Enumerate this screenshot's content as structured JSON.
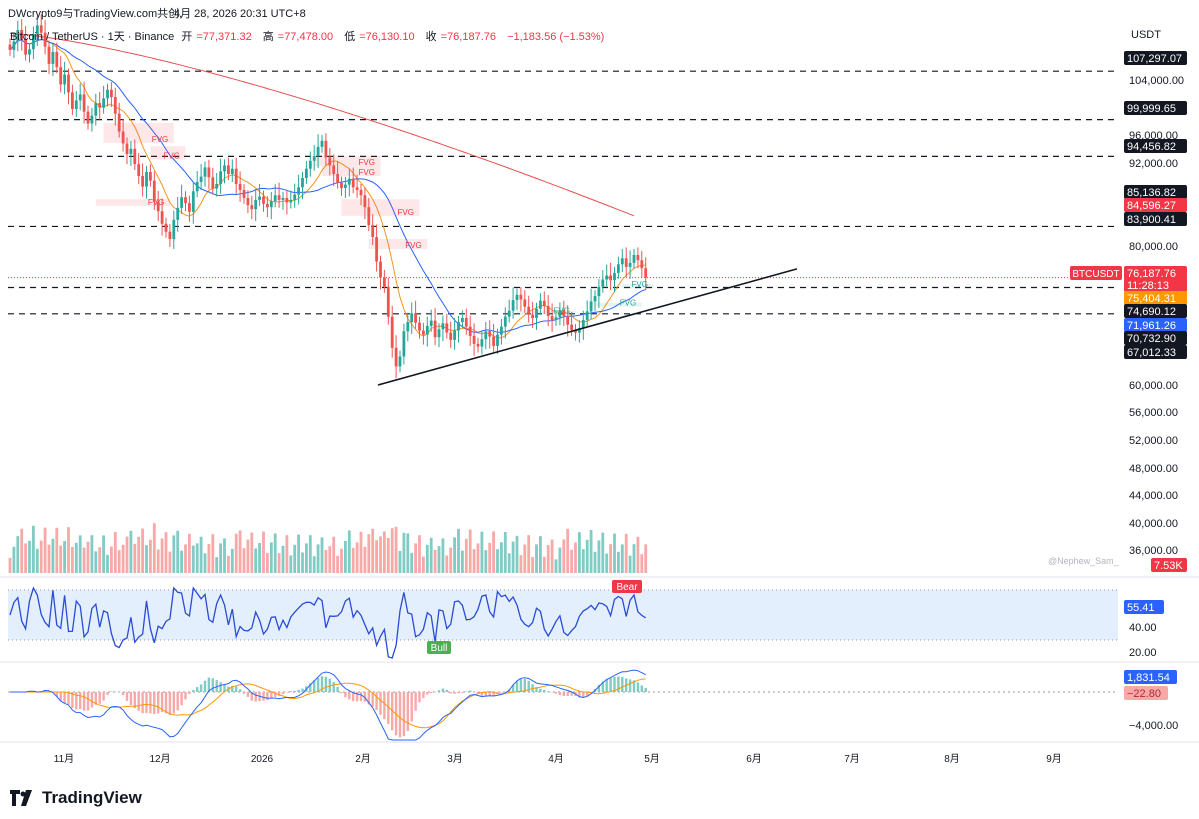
{
  "header": {
    "publisher": "DWcrypto9与TradingView.com共创,",
    "datetime": "4月 28, 2026 20:31 UTC+8"
  },
  "legend": {
    "symbol": "Bitcoin / TetherUS · 1天 · Binance",
    "open_label": "开",
    "open": "=77,371.32",
    "high_label": "高",
    "high": "=77,478.00",
    "low_label": "低",
    "low": "=76,130.10",
    "close_label": "收",
    "close": "=76,187.76",
    "change": "−1,183.56 (−1.53%)"
  },
  "currency": "USDT",
  "watermark": "@Nephew_Sam_",
  "brand": "TradingView",
  "colors": {
    "up": "#26a69a",
    "down": "#ef5350",
    "vol_up": "#80cbc4",
    "vol_down": "#f7a9a7",
    "ma_blue": "#2962ff",
    "ma_orange": "#f7941d",
    "ma_red": "#e55050",
    "rsi": "#2a4bd7",
    "rsi_band": "#e3effc",
    "macd": "#2962ff",
    "signal": "#ff9800"
  },
  "chart_data": [
    {
      "type": "candlestick",
      "title": "Bitcoin / TetherUS · 1天 · Binance",
      "x_ticks": [
        "11月",
        "12月",
        "2026",
        "2月",
        "3月",
        "4月",
        "5月",
        "6月",
        "7月",
        "8月",
        "9月"
      ],
      "y_ticks": [
        "104,000.00",
        "96,000.00",
        "92,000.00",
        "80,000.00",
        "60,000.00",
        "56,000.00",
        "52,000.00",
        "48,000.00",
        "44,000.00",
        "40,000.00",
        "36,000.00"
      ],
      "horizontal_levels": [
        {
          "value": 107297.07,
          "label": "107,297.07",
          "style": "dashed"
        },
        {
          "value": 99999.65,
          "label": "99,999.65",
          "style": "dashed"
        },
        {
          "value": 94456.82,
          "label": "94,456.82",
          "style": "dashed"
        },
        {
          "value": 83900.41,
          "label": "83,900.41",
          "style": "dashed"
        },
        {
          "value": 74690.12,
          "label": "74,690.12",
          "style": "dashed"
        },
        {
          "value": 70732.9,
          "label": "70,732.90",
          "style": "dashed"
        }
      ],
      "price_tags": [
        {
          "label": "85,136.82",
          "bg": "#131722"
        },
        {
          "label": "84,596.27",
          "bg": "#f23645"
        },
        {
          "label": "83,900.41",
          "bg": "#131722"
        },
        {
          "label": "BTCUSDT",
          "bg": "#f23645"
        },
        {
          "label": "76,187.76",
          "bg": "#f23645"
        },
        {
          "label": "11:28:13",
          "bg": "#f23645"
        },
        {
          "label": "75,404.31",
          "bg": "#ff9800"
        },
        {
          "label": "74,690.12",
          "bg": "#131722"
        },
        {
          "label": "71,961.26",
          "bg": "#2962ff"
        },
        {
          "label": "70,732.90",
          "bg": "#131722"
        },
        {
          "label": "67,012.33",
          "bg": "#131722"
        },
        {
          "label": "107,297.07",
          "bg": "#131722"
        },
        {
          "label": "99,999.65",
          "bg": "#131722"
        },
        {
          "label": "94,456.82",
          "bg": "#131722"
        }
      ],
      "fvg_label": "FVG",
      "trendline": {
        "from": {
          "date": "2026-02-06",
          "price": 60000
        },
        "to": {
          "date": "2026-05-25",
          "price": 77500
        }
      },
      "moving_averages": [
        "blue",
        "orange",
        "red"
      ],
      "volume_label": "7.53K",
      "close_series": [
        110500,
        111800,
        113500,
        112200,
        109800,
        110600,
        112900,
        114200,
        113100,
        111000,
        108400,
        110200,
        107900,
        105300,
        106800,
        104100,
        101600,
        102900,
        103800,
        101200,
        99400,
        100600,
        102500,
        101800,
        103200,
        104500,
        103400,
        100900,
        98200,
        96400,
        94800,
        95600,
        93300,
        91500,
        89900,
        92100,
        90800,
        87600,
        86200,
        84300,
        83100,
        82000,
        84900,
        86700,
        88300,
        87400,
        86100,
        89200,
        90600,
        91400,
        92800,
        91300,
        89600,
        90300,
        92200,
        93100,
        91800,
        92600,
        90300,
        89400,
        88200,
        87100,
        86500,
        87900,
        88400,
        87300,
        86800,
        87700,
        88600,
        87900,
        88200,
        87500,
        87900,
        88700,
        89800,
        91200,
        92600,
        93800,
        94500,
        95900,
        96800,
        94300,
        93100,
        91800,
        90500,
        89700,
        90200,
        91100,
        89800,
        89400,
        88600,
        86800,
        84100,
        82300,
        78600,
        76200,
        74800,
        70300,
        65600,
        62800,
        64300,
        68100,
        69500,
        70800,
        69400,
        68200,
        67600,
        68900,
        69700,
        67200,
        68400,
        69300,
        67900,
        66800,
        68200,
        69500,
        70100,
        68800,
        67400,
        66200,
        65800,
        66900,
        68100,
        67300,
        65900,
        67600,
        68800,
        70300,
        71200,
        72800,
        73600,
        72900,
        71800,
        70600,
        70100,
        71500,
        72700,
        71900,
        70400,
        69800,
        70200,
        71300,
        70400,
        69100,
        68300,
        67900,
        68600,
        69800,
        71100,
        72600,
        73400,
        74800,
        75900,
        76500,
        75800,
        76900,
        78200,
        79100,
        77800,
        78400,
        79600,
        78800,
        77600,
        76188
      ],
      "rsi": {
        "value": "55.41",
        "ticks": [
          "40.00",
          "20.00"
        ],
        "labels": [
          "Bull",
          "Bear"
        ]
      },
      "macd": {
        "macd_value": "1,831.54",
        "signal_value": "−22.80",
        "ticks": [
          "−4,000.00"
        ]
      }
    }
  ]
}
